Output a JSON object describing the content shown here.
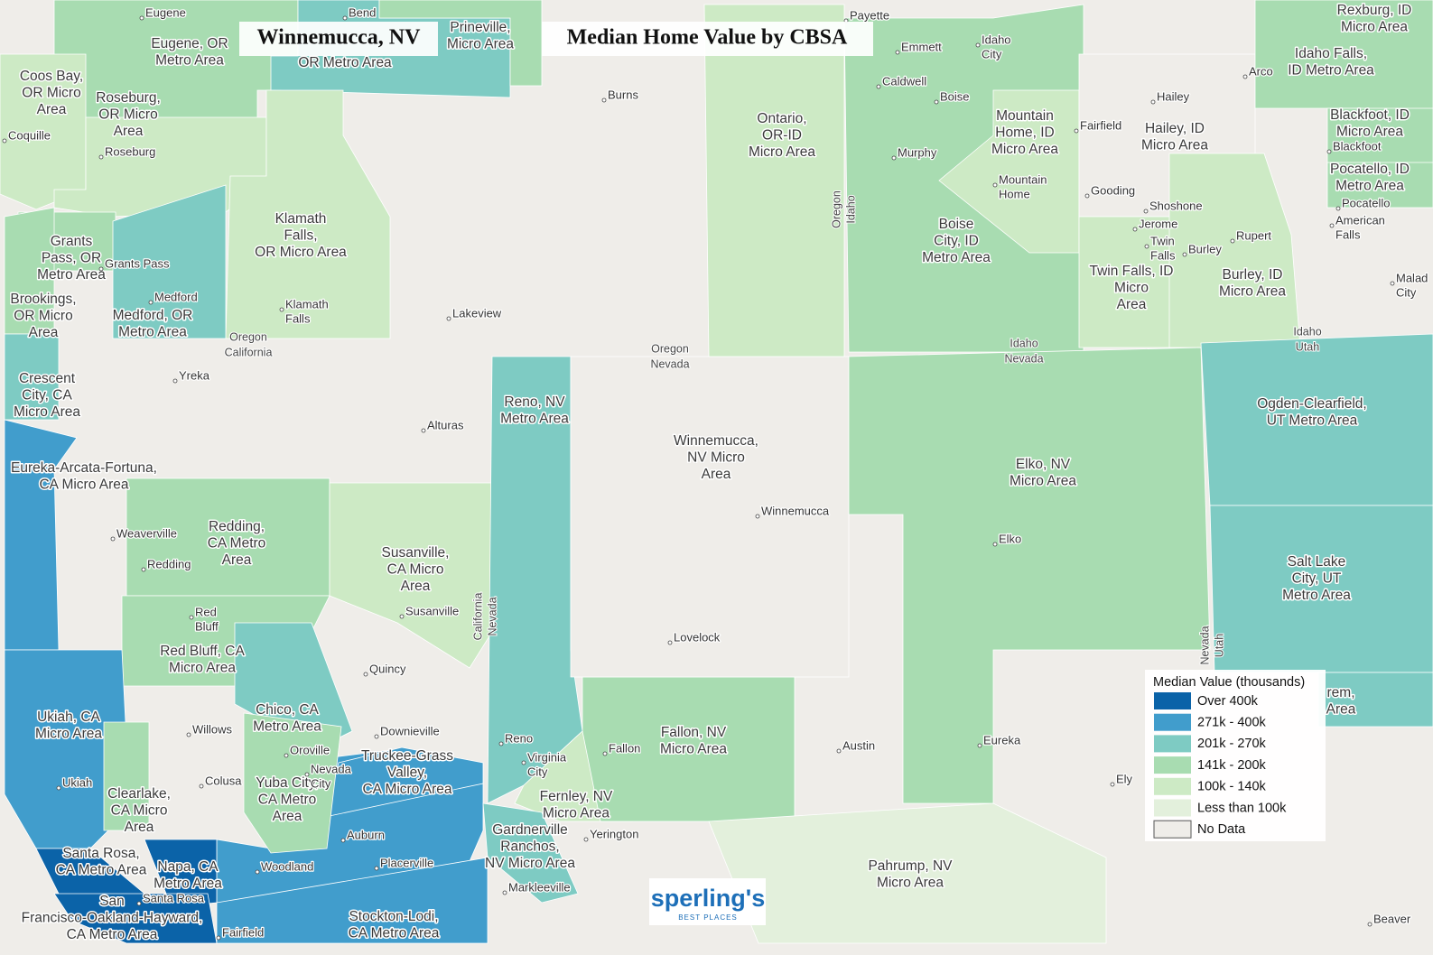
{
  "title": "Winnemucca, NV",
  "subtitle": "Median Home Value by CBSA",
  "legend": {
    "title": "Median Value (thousands)",
    "items": [
      {
        "label": "Over 400k",
        "color": "#0b63a8"
      },
      {
        "label": "271k - 400k",
        "color": "#419dcc"
      },
      {
        "label": "201k - 270k",
        "color": "#7ecbc3"
      },
      {
        "label": "141k - 200k",
        "color": "#a8dcb1"
      },
      {
        "label": "100k - 140k",
        "color": "#cdeac5"
      },
      {
        "label": "Less than 100k",
        "color": "#e3f0dc"
      },
      {
        "label": "No Data",
        "color": "#efede9"
      }
    ]
  },
  "logo": {
    "name": "sperling's",
    "tagline": "BEST PLACES"
  },
  "regions": [
    {
      "label": [
        "Eugene, OR",
        "Metro Area"
      ],
      "class": 3
    },
    {
      "label": [
        "OR Metro Area"
      ],
      "class": 2
    },
    {
      "label": [
        "Prineville,",
        "Micro Area"
      ],
      "class": 3
    },
    {
      "label": [
        "Coos Bay,",
        "OR Micro",
        "Area"
      ],
      "class": 4
    },
    {
      "label": [
        "Roseburg,",
        "OR Micro",
        "Area"
      ],
      "class": 4
    },
    {
      "label": [
        "Klamath",
        "Falls,",
        "OR Micro Area"
      ],
      "class": 4
    },
    {
      "label": [
        "Grants",
        "Pass, OR",
        "Metro Area"
      ],
      "class": 3
    },
    {
      "label": [
        "Brookings,",
        "OR Micro",
        "Area"
      ],
      "class": 2
    },
    {
      "label": [
        "Medford, OR",
        "Metro Area"
      ],
      "class": 3
    },
    {
      "label": [
        "Crescent",
        "City, CA",
        "Micro Area"
      ],
      "class": 2
    },
    {
      "label": [
        "Eureka-Arcata-Fortuna,",
        "CA Micro Area"
      ],
      "class": 1
    },
    {
      "label": [
        "Redding,",
        "CA Metro",
        "Area"
      ],
      "class": 3
    },
    {
      "label": [
        "Susanville,",
        "CA Micro",
        "Area"
      ],
      "class": 4
    },
    {
      "label": [
        "Red Bluff, CA",
        "Micro Area"
      ],
      "class": 3
    },
    {
      "label": [
        "Ukiah, CA",
        "Micro Area"
      ],
      "class": 1
    },
    {
      "label": [
        "Chico, CA",
        "Metro Area"
      ],
      "class": 2
    },
    {
      "class": 1
    },
    {
      "label": [
        "Truckee-Grass",
        "Valley,",
        "CA Micro Area"
      ],
      "class": 1
    },
    {
      "label": [
        "Yuba City,",
        "CA Metro",
        "Area"
      ],
      "class": 3
    },
    {
      "label": [
        "Clearlake,",
        "CA Micro",
        "Area"
      ],
      "class": 3
    },
    {
      "label": [
        "Santa Rosa,",
        "CA Metro Area"
      ],
      "class": 0
    },
    {
      "label": [
        "Napa, CA",
        "Metro Area"
      ],
      "class": 0
    },
    {
      "label": [
        "San",
        "Francisco-Oakland-Hayward,",
        "CA Metro Area"
      ],
      "class": 0
    },
    {
      "label": [
        "Stockton-Lodi,",
        "CA Metro Area"
      ],
      "class": 1
    },
    {
      "label": [
        "Reno, NV",
        "Metro Area"
      ],
      "class": 2
    },
    {
      "label": [
        "Fernley, NV",
        "Micro Area"
      ],
      "class": 4
    },
    {
      "label": [
        "Gardnerville",
        "Ranchos,",
        "NV Micro Area"
      ],
      "class": 2
    },
    {
      "label": [
        "Fallon, NV",
        "Micro Area"
      ],
      "class": 3
    },
    {
      "label": [
        "Winnemucca,",
        "NV Micro",
        "Area"
      ],
      "class": 6
    },
    {
      "label": [
        "Pahrump, NV",
        "Micro Area"
      ],
      "class": 5
    },
    {
      "label": [
        "Ontario,",
        "OR-ID",
        "Micro Area"
      ],
      "class": 4
    },
    {
      "label": [
        "Boise",
        "City, ID",
        "Metro Area"
      ],
      "class": 3
    },
    {
      "label": [
        "Mountain",
        "Home, ID",
        "Micro Area"
      ],
      "class": 4
    },
    {
      "label": [
        "Hailey, ID",
        "Micro Area"
      ],
      "class": 6
    },
    {
      "label": [
        "Twin Falls, ID",
        "Micro",
        "Area"
      ],
      "class": 4
    },
    {
      "label": [
        "Burley, ID",
        "Micro Area"
      ],
      "class": 4
    },
    {
      "label": [
        "Elko, NV",
        "Micro Area"
      ],
      "class": 3
    },
    {
      "label": [
        "Ogden-Clearfield,",
        "UT Metro Area"
      ],
      "class": 2
    },
    {
      "label": [
        "Salt Lake",
        "City, UT",
        "Metro Area"
      ],
      "class": 2
    },
    {
      "label": [
        "rem,",
        "Area"
      ],
      "class": 2
    },
    {
      "label": [
        "Rexburg, ID",
        "Micro Area"
      ],
      "class": 3
    },
    {
      "label": [
        "Idaho Falls,",
        "ID Metro Area"
      ],
      "class": 3
    },
    {
      "label": [
        "Blackfoot, ID",
        "Micro Area"
      ],
      "class": 3
    },
    {
      "label": [
        "Pocatello, ID",
        "Metro Area"
      ],
      "class": 3
    }
  ],
  "cities": [
    [
      "Eugene"
    ],
    [
      "Bend"
    ],
    [
      "Burns"
    ],
    [
      "Payette"
    ],
    [
      "Emmett"
    ],
    [
      "Idaho",
      "City"
    ],
    [
      "Caldwell"
    ],
    [
      "Boise"
    ],
    [
      "Hailey"
    ],
    [
      "Fairfield"
    ],
    [
      "Arco"
    ],
    [
      "Blackfoot"
    ],
    [
      "Pocatello"
    ],
    [
      "American",
      "Falls"
    ],
    [
      "Coquille"
    ],
    [
      "Roseburg"
    ],
    [
      "Grants Pass"
    ],
    [
      "Medford"
    ],
    [
      "Klamath",
      "Falls"
    ],
    [
      "Lakeview"
    ],
    [
      "Murphy"
    ],
    [
      "Mountain",
      "Home"
    ],
    [
      "Gooding"
    ],
    [
      "Shoshone"
    ],
    [
      "Jerome"
    ],
    [
      "Twin",
      "Falls"
    ],
    [
      "Burley"
    ],
    [
      "Rupert"
    ],
    [
      "Malad",
      "City"
    ],
    [
      "Yreka"
    ],
    [
      "Alturas"
    ],
    [
      "Winnemucca"
    ],
    [
      "Elko"
    ],
    [
      "Weaverville"
    ],
    [
      "Redding"
    ],
    [
      "Susanville"
    ],
    [
      "Red",
      "Bluff"
    ],
    [
      "Quincy"
    ],
    [
      "Lovelock"
    ],
    [
      "Willows"
    ],
    [
      "Downieville"
    ],
    [
      "Oroville"
    ],
    [
      "Reno"
    ],
    [
      "Virginia",
      "City"
    ],
    [
      "Fallon"
    ],
    [
      "Austin"
    ],
    [
      "Eureka"
    ],
    [
      "Nevada",
      "City"
    ],
    [
      "Colusa"
    ],
    [
      "Ukiah"
    ],
    [
      "Ely"
    ],
    [
      "Yerington"
    ],
    [
      "Auburn"
    ],
    [
      "Woodland"
    ],
    [
      "Placerville"
    ],
    [
      "Markleeville"
    ],
    [
      "Santa Rosa"
    ],
    [
      "Fairfield"
    ],
    [
      "Beaver"
    ]
  ],
  "state_labels": [
    [
      "Oregon",
      "California"
    ],
    [
      "Oregon",
      "Nevada"
    ],
    [
      "Idaho",
      "Nevada"
    ],
    [
      "Idaho",
      "Utah"
    ],
    [
      "California",
      "Nevada"
    ],
    [
      "Oregon",
      "Idaho"
    ],
    [
      "Nevada",
      "Utah"
    ]
  ]
}
